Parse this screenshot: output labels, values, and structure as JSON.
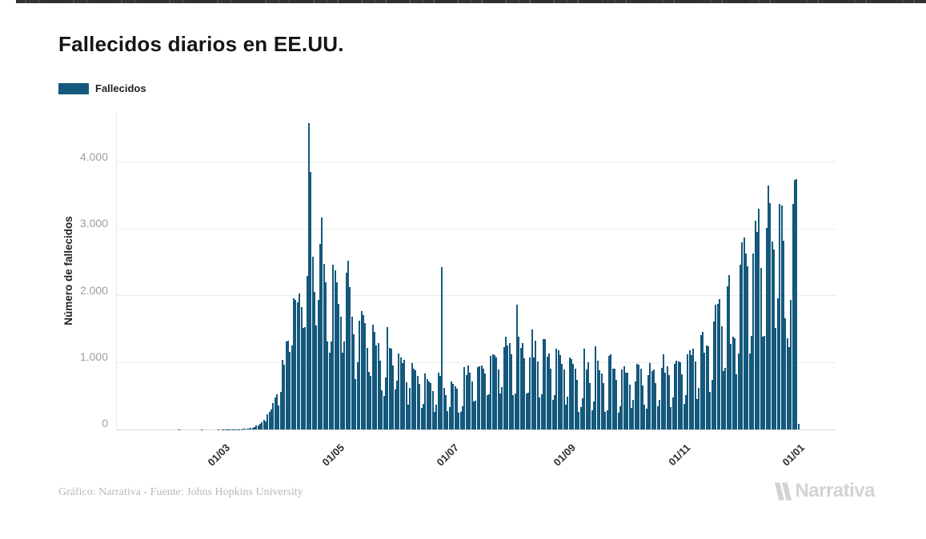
{
  "header": {
    "title": "Fallecidos diarios en EE.UU."
  },
  "footer": {
    "credit": "Gráfico: Narrativa - Fuente: Johns Hopkins University",
    "logo_text": "Narrativa"
  },
  "colors": {
    "bar": "#14587C",
    "grid": "#ebebeb",
    "tick_text": "#9e9e9e",
    "watermark": "#d3d3d3"
  },
  "chart_data": {
    "type": "bar",
    "title": "Fallecidos diarios en EE.UU.",
    "series_name": "Fallecidos",
    "ylabel": "Número de fallecidos",
    "ytick_labels": [
      "0",
      "1.000",
      "2.000",
      "3.000",
      "4.000"
    ],
    "ylim": [
      0,
      4760
    ],
    "grid": "horizontal",
    "legend_position": "top-left",
    "bar_color": "#14587C",
    "x_unit": "day",
    "x_start_date": "22/01/2020",
    "x_end_date": "01/01/2021",
    "xtick_labels": [
      "01/03",
      "01/05",
      "01/07",
      "01/09",
      "01/11",
      "01/01"
    ],
    "xtick_indices": [
      39,
      100,
      161,
      223,
      284,
      345
    ],
    "values": [
      0,
      0,
      0,
      0,
      0,
      0,
      0,
      0,
      0,
      0,
      0,
      0,
      0,
      0,
      0,
      1,
      0,
      0,
      0,
      0,
      0,
      0,
      0,
      0,
      0,
      0,
      0,
      1,
      0,
      0,
      0,
      0,
      0,
      0,
      0,
      0,
      1,
      0,
      1,
      1,
      1,
      4,
      3,
      2,
      3,
      4,
      3,
      4,
      5,
      7,
      9,
      11,
      14,
      19,
      22,
      41,
      58,
      62,
      85,
      110,
      140,
      117,
      226,
      266,
      305,
      399,
      481,
      527,
      364,
      560,
      1049,
      968,
      1321,
      1331,
      1165,
      1255,
      1970,
      1940,
      1906,
      2035,
      1830,
      1528,
      1535,
      2299,
      4591,
      3857,
      2585,
      2065,
      1561,
      1939,
      2786,
      3179,
      2487,
      2206,
      1323,
      1157,
      1324,
      2470,
      2390,
      2201,
      1883,
      1691,
      1154,
      1324,
      2350,
      2528,
      2129,
      1687,
      1422,
      750,
      1008,
      1630,
      1772,
      1715,
      1595,
      1218,
      865,
      808,
      1568,
      1461,
      1263,
      1293,
      1036,
      592,
      505,
      774,
      1535,
      1223,
      1212,
      960,
      605,
      730,
      1134,
      1083,
      994,
      1045,
      709,
      373,
      621,
      995,
      906,
      891,
      802,
      683,
      329,
      389,
      841,
      759,
      722,
      691,
      577,
      267,
      372,
      851,
      808,
      2437,
      621,
      517,
      271,
      335,
      724,
      686,
      643,
      608,
      251,
      262,
      351,
      935,
      821,
      957,
      849,
      722,
      420,
      436,
      934,
      947,
      963,
      908,
      844,
      516,
      527,
      1109,
      1131,
      1111,
      1076,
      905,
      534,
      636,
      1231,
      1393,
      1258,
      1290,
      1132,
      520,
      536,
      1870,
      1391,
      1221,
      1290,
      1064,
      541,
      548,
      1083,
      1499,
      1076,
      1337,
      1021,
      480,
      528,
      1357,
      1356,
      1090,
      1142,
      907,
      447,
      511,
      1211,
      1183,
      1112,
      983,
      905,
      369,
      488,
      1083,
      1054,
      980,
      912,
      744,
      267,
      338,
      463,
      1208,
      904,
      1009,
      701,
      287,
      423,
      1242,
      1027,
      890,
      837,
      701,
      258,
      288,
      1100,
      1131,
      913,
      916,
      749,
      252,
      344,
      899,
      949,
      852,
      848,
      669,
      323,
      445,
      718,
      989,
      972,
      910,
      655,
      373,
      310,
      811,
      993,
      870,
      901,
      695,
      345,
      447,
      929,
      1124,
      856,
      945,
      821,
      340,
      477,
      986,
      1030,
      1014,
      1002,
      827,
      381,
      510,
      1130,
      1187,
      1113,
      1209,
      1021,
      459,
      621,
      1420,
      1464,
      1152,
      1255,
      1251,
      564,
      740,
      1616,
      1869,
      1878,
      1951,
      1552,
      874,
      922,
      2146,
      2311,
      1281,
      1395,
      1365,
      826,
      1134,
      2473,
      2804,
      2879,
      2637,
      2445,
      1138,
      1404,
      2634,
      3124,
      2956,
      3309,
      2425,
      1389,
      1404,
      3019,
      3660,
      3389,
      2814,
      2697,
      1525,
      1962,
      3380,
      3359,
      2827,
      1666,
      1366,
      1240,
      1947,
      3385,
      3740,
      3750,
      90
    ]
  }
}
